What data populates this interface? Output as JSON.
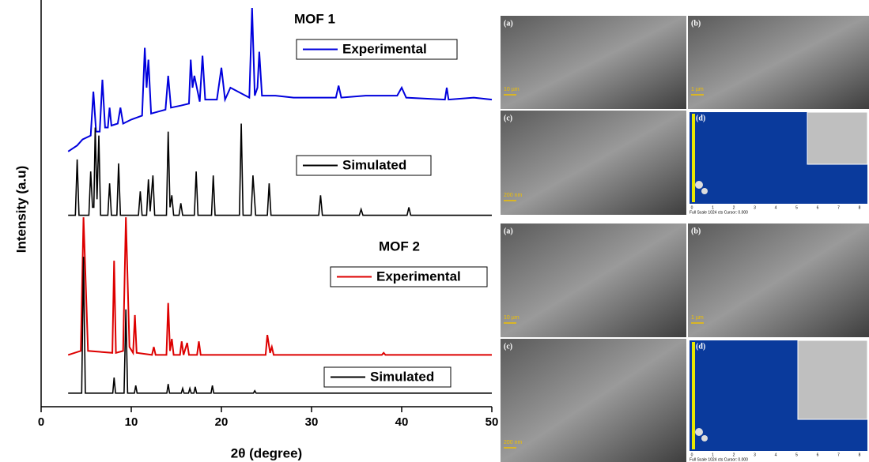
{
  "chart_data": {
    "type": "line",
    "xlabel": "2θ (degree)",
    "ylabel": "Intensity (a.u)",
    "xlim": [
      0,
      50
    ],
    "xticks": [
      0,
      10,
      20,
      30,
      40,
      50
    ],
    "ylim": [
      0,
      100
    ],
    "annotations": [
      "MOF 1",
      "MOF 2"
    ],
    "series": [
      {
        "name": "Experimental",
        "color": "#0000dd",
        "x": [
          3,
          4,
          4.6,
          5.5,
          5.8,
          6.1,
          6.5,
          6.8,
          7.1,
          7.4,
          7.6,
          7.8,
          8.5,
          8.8,
          9.1,
          10,
          11.2,
          11.5,
          11.7,
          11.9,
          12.2,
          13,
          13.8,
          14.1,
          14.4,
          15.5,
          16.4,
          16.6,
          16.8,
          17,
          17.6,
          17.9,
          18.2,
          19.5,
          20,
          20.4,
          21,
          23.1,
          23.4,
          23.7,
          24,
          24.2,
          24.5,
          26,
          28,
          30,
          32.7,
          33,
          33.3,
          36,
          39.5,
          40,
          40.5,
          44.8,
          45,
          45.2,
          48,
          50
        ],
        "values": [
          64,
          65.5,
          67,
          68,
          79,
          69,
          69,
          82,
          70,
          70,
          75,
          70.5,
          71,
          75,
          71,
          72,
          73,
          90,
          80,
          87,
          73.5,
          74,
          74.5,
          83,
          75,
          75.5,
          76,
          87,
          80,
          83,
          76.5,
          88,
          77,
          77,
          85,
          77,
          80,
          77.5,
          100,
          78,
          80,
          89,
          78,
          78,
          77.5,
          77.5,
          77.5,
          80.5,
          77.5,
          78,
          78,
          80,
          77.5,
          77,
          80,
          77,
          77.5,
          77
        ]
      },
      {
        "name": "Simulated",
        "color": "#000000",
        "x": [
          3,
          3.8,
          4,
          4.2,
          5.3,
          5.5,
          5.7,
          5.85,
          6,
          6.2,
          6.4,
          6.6,
          7.4,
          7.6,
          7.8,
          8.4,
          8.6,
          8.8,
          10.8,
          11,
          11.2,
          11.7,
          11.9,
          12.1,
          12.4,
          12.6,
          13.9,
          14.1,
          14.3,
          14.5,
          14.7,
          15.3,
          15.5,
          15.7,
          17,
          17.2,
          17.4,
          18.9,
          19.1,
          19.3,
          22,
          22.2,
          22.4,
          23.3,
          23.5,
          23.8,
          25.1,
          25.3,
          25.5,
          30.8,
          31,
          31.2,
          35.3,
          35.5,
          35.7,
          40.6,
          40.8,
          41,
          50
        ],
        "values": [
          48,
          48,
          62,
          48,
          48,
          59,
          50,
          50,
          70,
          52,
          68,
          48,
          48,
          56,
          48,
          48,
          61,
          48,
          48,
          54,
          48,
          48,
          57,
          49,
          58,
          48,
          48,
          69,
          50,
          53,
          48,
          48,
          51,
          48,
          48,
          59,
          48,
          48,
          58,
          48,
          48,
          71,
          48,
          48,
          58,
          48,
          48,
          56,
          48,
          48,
          53,
          48,
          48,
          49.5,
          48,
          48,
          50,
          48,
          48
        ]
      },
      {
        "name": "Experimental",
        "color": "#dd0000",
        "x": [
          3,
          4.4,
          4.7,
          5.2,
          7.9,
          8.1,
          8.3,
          9.1,
          9.4,
          9.8,
          10.2,
          10.4,
          10.6,
          12.3,
          12.5,
          12.7,
          13.9,
          14.1,
          14.3,
          14.5,
          14.7,
          15.4,
          15.6,
          15.8,
          16.2,
          16.4,
          17.3,
          17.5,
          17.7,
          24.9,
          25.1,
          25.4,
          25.6,
          25.8,
          37.8,
          38,
          38.2,
          50
        ],
        "values": [
          13,
          14,
          47.5,
          14,
          13.5,
          36.6,
          13.5,
          14,
          47.5,
          15,
          13.5,
          23,
          13.5,
          13,
          15,
          13,
          13,
          26,
          14,
          17,
          13,
          13,
          16.4,
          13,
          16,
          13,
          13,
          16.4,
          13,
          13,
          18,
          13.5,
          15,
          13,
          13,
          13.5,
          13,
          13
        ]
      },
      {
        "name": "Simulated",
        "color": "#000000",
        "x": [
          3,
          4.5,
          4.7,
          4.9,
          7.95,
          8.1,
          8.25,
          9.2,
          9.4,
          9.6,
          10.35,
          10.5,
          10.65,
          13.95,
          14.1,
          14.25,
          15.55,
          15.7,
          15.85,
          16.35,
          16.5,
          16.65,
          16.95,
          17.1,
          17.25,
          18.85,
          19,
          19.15,
          23.55,
          23.7,
          23.85,
          50
        ],
        "values": [
          3.4,
          3.4,
          37.6,
          3.4,
          3.4,
          7.3,
          3.4,
          3.4,
          24.4,
          3.4,
          3.4,
          5.3,
          3.4,
          3.4,
          5.7,
          3.4,
          3.4,
          4.6,
          3.4,
          3.4,
          4.6,
          3.4,
          3.4,
          5,
          3.4,
          3.4,
          5.3,
          3.4,
          3.4,
          4,
          3.4,
          3.4
        ]
      }
    ]
  },
  "images": [
    {
      "panels": [
        {
          "label": "(a)",
          "scale": "10 µm"
        },
        {
          "label": "(b)",
          "scale": "1 µm"
        },
        {
          "label": "(c)",
          "scale": "200 nm"
        },
        {
          "label": "(d)"
        }
      ]
    },
    {
      "panels": [
        {
          "label": "(a)",
          "scale": "10 µm"
        },
        {
          "label": "(b)",
          "scale": "1 µm"
        },
        {
          "label": "(c)",
          "scale": "200 nm"
        },
        {
          "label": "(d)"
        }
      ]
    }
  ],
  "eds": {
    "axis": [
      0,
      1,
      2,
      3,
      4,
      5,
      6,
      7,
      8
    ],
    "footer": "Full Scale 1024 cts Cursor: 0.000"
  }
}
